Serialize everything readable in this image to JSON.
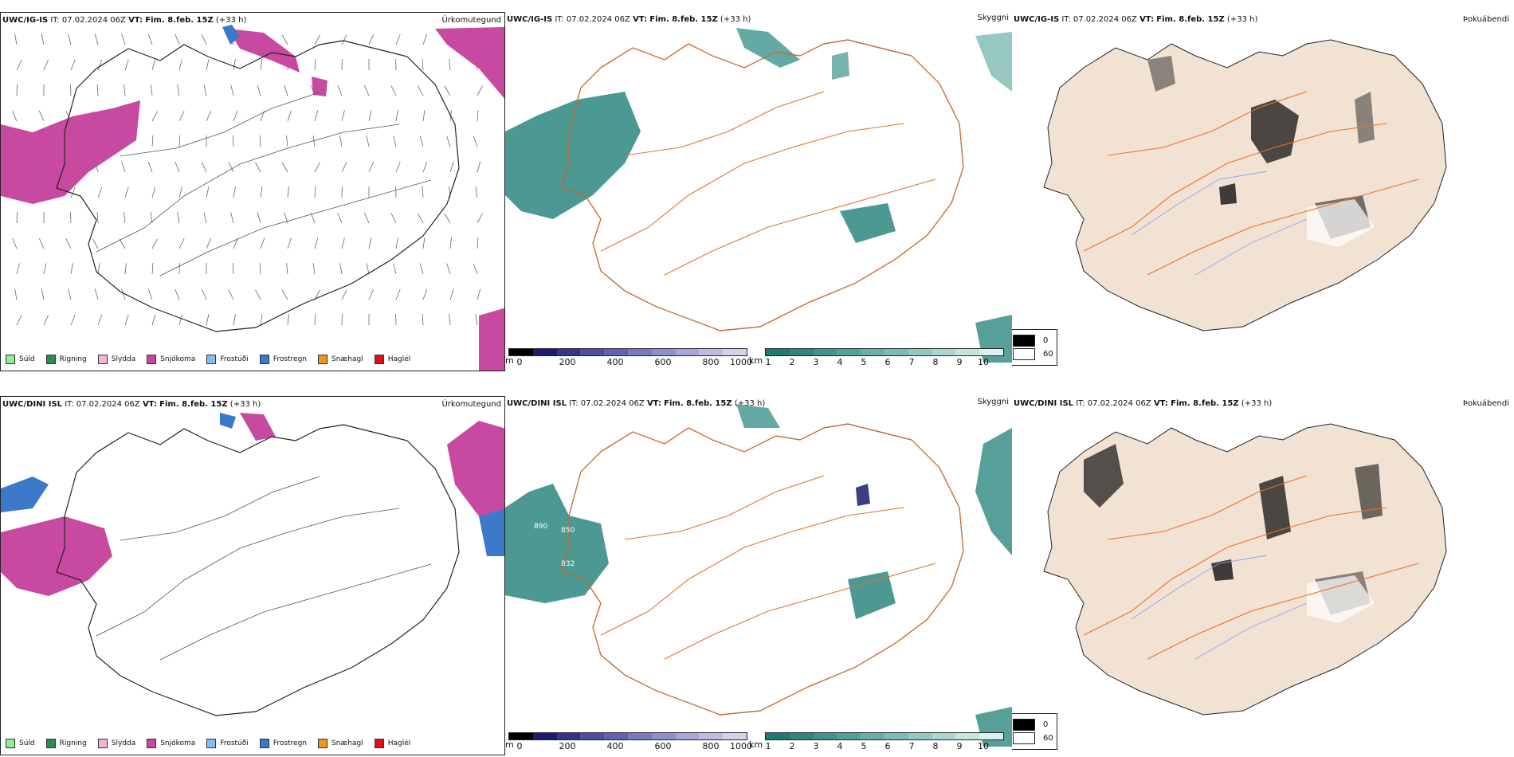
{
  "rows": [
    {
      "model": "UWC/IG-IS",
      "it_label": "IT:",
      "it_value": "07.02.2024 06Z",
      "vt_label": "VT:",
      "vt_value": "Fim. 8.feb. 15Z",
      "lead": "(+33 h)"
    },
    {
      "model": "UWC/DINI ISL",
      "it_label": "IT:",
      "it_value": "07.02.2024 06Z",
      "vt_label": "VT:",
      "vt_value": "Fim. 8.feb. 15Z",
      "lead": "(+33 h)"
    }
  ],
  "panel_titles": {
    "precip": "Úrkomutegund",
    "visibility": "Skyggni",
    "fog": "Þokuábendi"
  },
  "precip_legend": [
    {
      "label": "Súld",
      "color": "#90ee90"
    },
    {
      "label": "Rigning",
      "color": "#2e8b57"
    },
    {
      "label": "Slydda",
      "color": "#f4b6d6"
    },
    {
      "label": "Snjókoma",
      "color": "#c84aa0"
    },
    {
      "label": "Frostúði",
      "color": "#87bdf0"
    },
    {
      "label": "Frostregn",
      "color": "#3a7ac8"
    },
    {
      "label": "Snæhagl",
      "color": "#f0951e"
    },
    {
      "label": "Haglél",
      "color": "#dd1111"
    }
  ],
  "visibility_scale_m": {
    "unit": "m",
    "ticks": [
      "0",
      "200",
      "400",
      "600",
      "800",
      "1000"
    ],
    "colors": [
      "#000000",
      "#1c1c6e",
      "#34348a",
      "#4e4ea0",
      "#6262b2",
      "#7a7ac0",
      "#8f8fcc",
      "#a6a6d8",
      "#bcbce2",
      "#d2d2ec"
    ]
  },
  "visibility_scale_km": {
    "unit": "km",
    "ticks": [
      "1",
      "2",
      "3",
      "4",
      "5",
      "6",
      "7",
      "8",
      "9",
      "10"
    ],
    "colors": [
      "#1d7a72",
      "#2d8780",
      "#3f948d",
      "#52a19a",
      "#67afa8",
      "#7cbcb6",
      "#93c9c4",
      "#abd6d2",
      "#c4e3e0",
      "#ddf0ee"
    ]
  },
  "fog_legend": [
    {
      "label": "0",
      "color": "#000000"
    },
    {
      "label": "60",
      "color": "#ffffff"
    }
  ],
  "contour_labels": [
    "890",
    "850",
    "832"
  ],
  "colors": {
    "land_fog": "#f2e2d3",
    "roads": "#e8722a",
    "rivers": "#8fa0ee",
    "snow": "#c84aa0",
    "frz_rain": "#3a7ac8",
    "vis_teal": "#2d8780"
  }
}
